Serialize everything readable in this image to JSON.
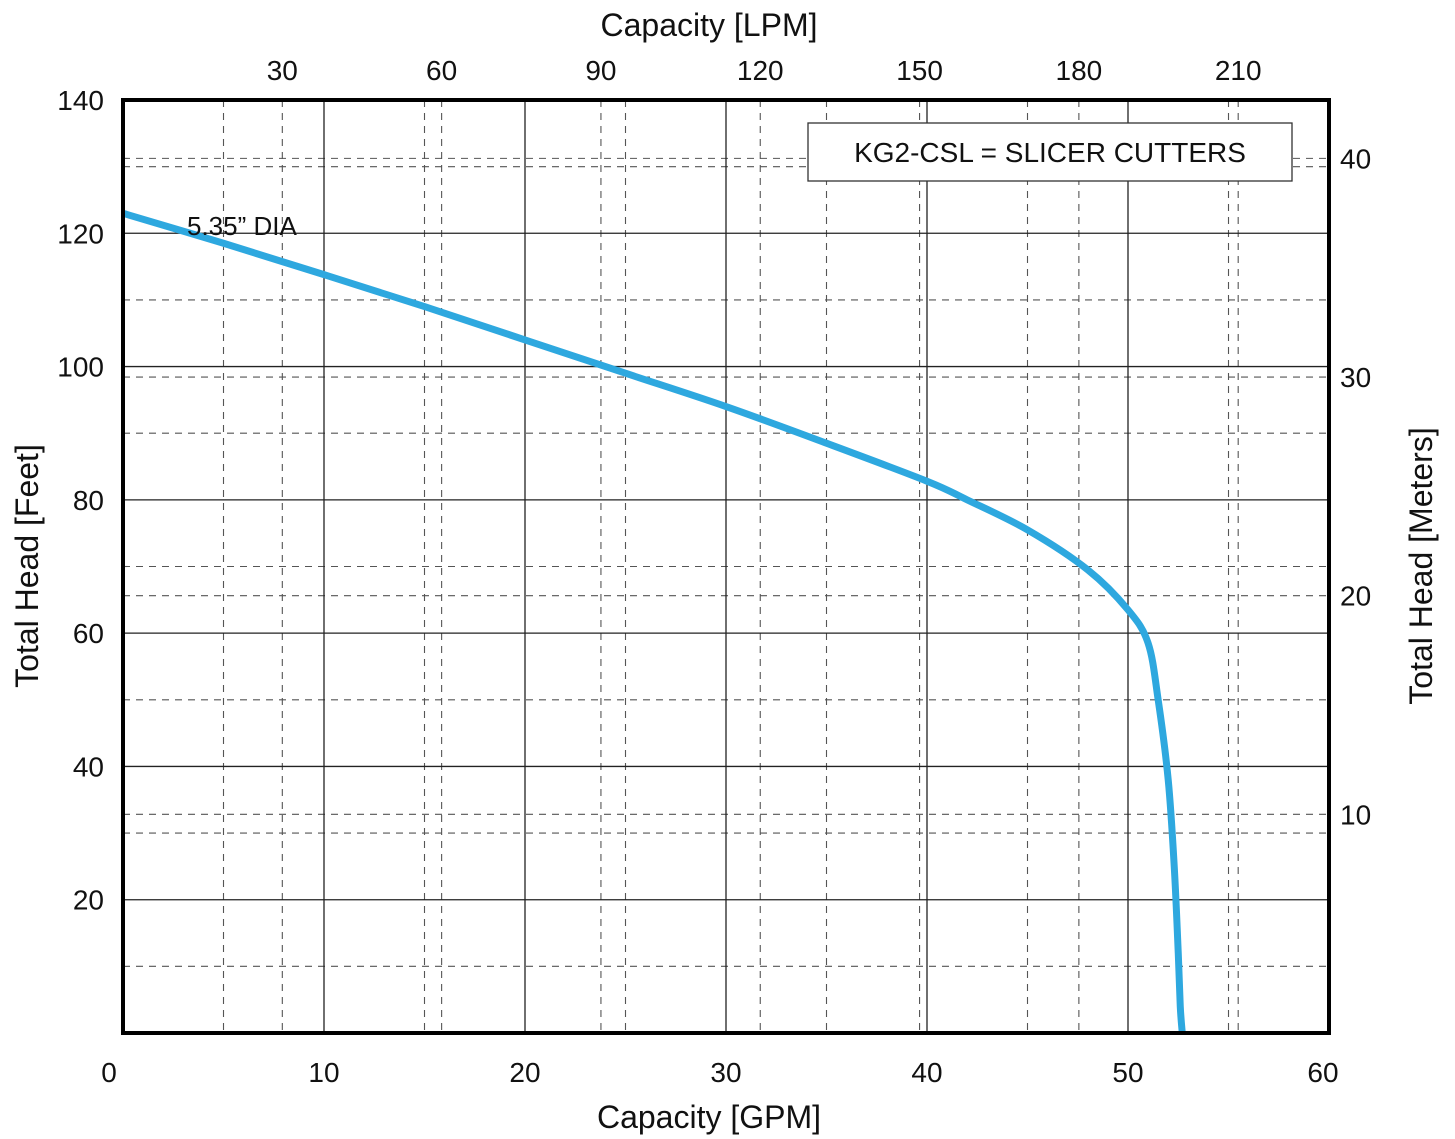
{
  "chart_data": {
    "type": "line",
    "xlabel": "Capacity [GPM]",
    "ylabel": "Total Head [Feet]",
    "x2label": "Capacity [LPM]",
    "y2label": "Total Head [Meters]",
    "xlim": [
      0,
      60
    ],
    "ylim": [
      0,
      140
    ],
    "x2lim": [
      0,
      227.1
    ],
    "y2lim": [
      0,
      42.67
    ],
    "x_ticks": [
      "0",
      "10",
      "20",
      "30",
      "40",
      "50",
      "60"
    ],
    "y_ticks": [
      "20",
      "40",
      "60",
      "80",
      "100",
      "120",
      "140"
    ],
    "x2_ticks": [
      "30",
      "60",
      "90",
      "120",
      "150",
      "180",
      "210"
    ],
    "y2_ticks": [
      "10",
      "20",
      "30",
      "40"
    ],
    "grid": true,
    "legend_text": "KG2-CSL =  SLICER CUTTERS",
    "curve_label": "5.35” DIA",
    "line_color": "#2ea8df",
    "series": [
      {
        "x": [
          0,
          5,
          10,
          15,
          20,
          25,
          30,
          35,
          40,
          42,
          45,
          48,
          50,
          51,
          51.5,
          52,
          52.3,
          52.5,
          52.6,
          52.7
        ],
        "y": [
          123,
          118.5,
          113.8,
          109,
          104,
          99,
          94,
          88.5,
          82.8,
          80,
          75.5,
          69.5,
          63.5,
          58.5,
          50,
          38,
          25,
          12,
          4,
          0
        ]
      }
    ]
  }
}
